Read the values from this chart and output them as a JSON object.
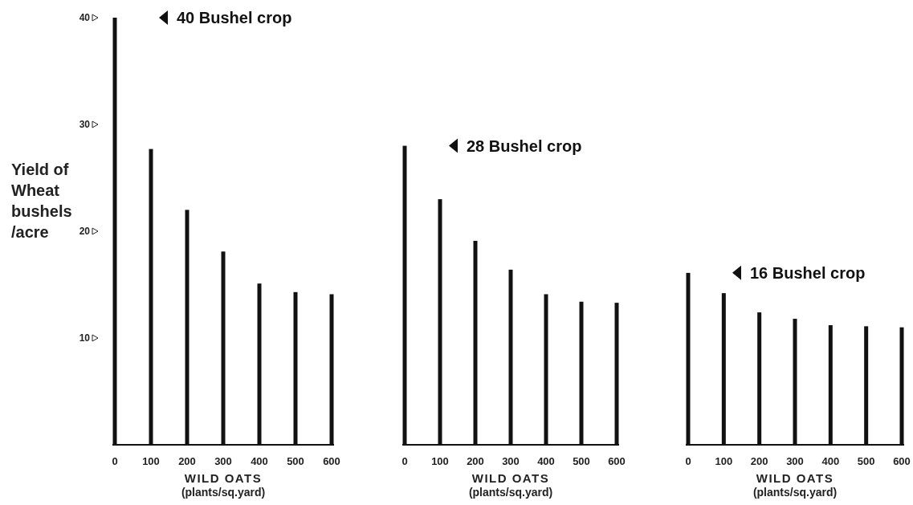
{
  "chart_data": [
    {
      "type": "bar",
      "ylabel": "Yield of Wheat bushels /acre",
      "xlabel": "WILD OATS (plants/sq.yard)",
      "categories": [
        "0",
        "100",
        "200",
        "300",
        "400",
        "500",
        "600"
      ],
      "values": [
        40,
        27.7,
        22.0,
        18.1,
        15.1,
        14.3,
        14.1
      ],
      "color": "#111111",
      "ylim": [
        0,
        40
      ],
      "yticks": [
        10,
        20,
        30,
        40
      ],
      "annotations": [
        "40 Bushel crop"
      ]
    },
    {
      "type": "bar",
      "xlabel": "WILD OATS (plants/sq.yard)",
      "categories": [
        "0",
        "100",
        "200",
        "300",
        "400",
        "500",
        "600"
      ],
      "values": [
        28.0,
        23.0,
        19.1,
        16.4,
        14.1,
        13.4,
        13.3
      ],
      "color": "#111111",
      "ylim": [
        0,
        40
      ],
      "tick_labels": "x",
      "annotations": [
        "28 Bushel crop"
      ]
    },
    {
      "type": "bar",
      "xlabel": "WILD OATS (plants/sq.yard)",
      "categories": [
        "0",
        "100",
        "200",
        "300",
        "400",
        "500",
        "600"
      ],
      "values": [
        16.1,
        14.2,
        12.4,
        11.8,
        11.2,
        11.1,
        11.0
      ],
      "color": "#111111",
      "ylim": [
        0,
        40
      ],
      "tick_labels": "x",
      "annotations": [
        "16 Bushel crop"
      ]
    }
  ]
}
